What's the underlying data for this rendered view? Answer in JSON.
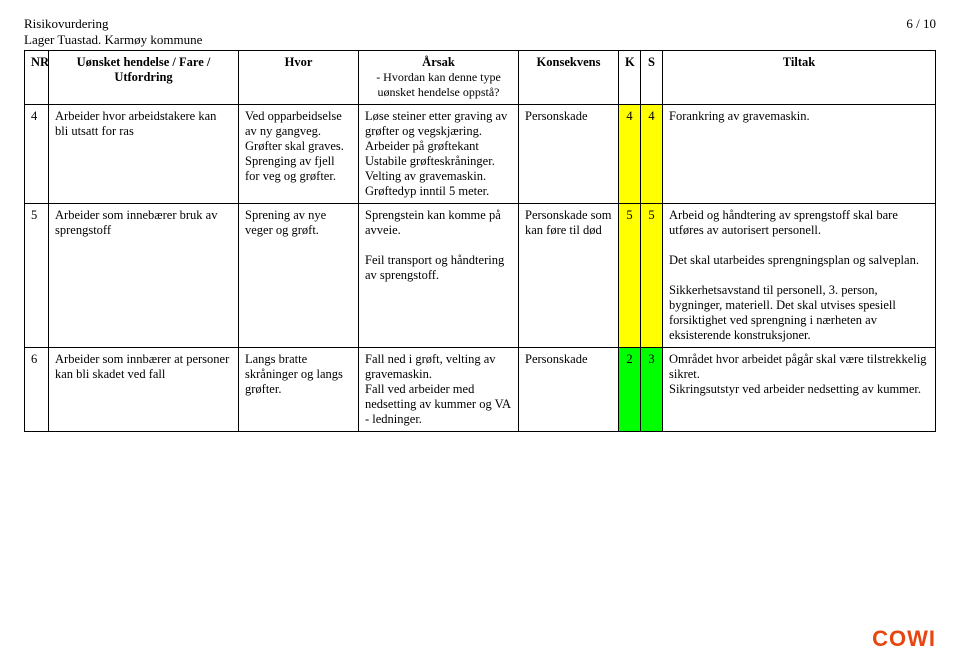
{
  "header": {
    "title": "Risikovurdering",
    "subtitle": "Lager Tuastad. Karmøy kommune",
    "page": "6 / 10"
  },
  "columns": {
    "nr": "NR",
    "event": "Uønsket hendelse / Fare / Utfordring",
    "hvor": "Hvor",
    "arsak": "Årsak",
    "arsak_sub": "- Hvordan kan denne type uønsket hendelse oppstå?",
    "kons": "Konsekvens",
    "k": "K",
    "s": "S",
    "tiltak": "Tiltak"
  },
  "rows": [
    {
      "nr": "4",
      "event": "Arbeider hvor arbeidstakere kan bli utsatt for ras",
      "hvor": "Ved opparbeidselse av ny gangveg. Grøfter skal graves. Sprenging av fjell for veg og grøfter.",
      "arsak": "Løse steiner etter graving av grøfter og vegskjæring. Arbeider på grøftekant Ustabile grøfteskråninger. Velting av gravemaskin. Grøftedyp inntil 5 meter.",
      "kons": "Personskade",
      "k": "4",
      "s": "4",
      "k_color": "#ffff00",
      "s_color": "#ffff00",
      "tiltak": "Forankring av gravemaskin."
    },
    {
      "nr": "5",
      "event": "Arbeider som innebærer bruk av sprengstoff",
      "hvor": "Sprening av nye veger og grøft.",
      "arsak": "Sprengstein kan komme på avveie.\n\nFeil transport og håndtering av sprengstoff.",
      "kons": "Personskade som kan føre til død",
      "k": "5",
      "s": "5",
      "k_color": "#ffff00",
      "s_color": "#ffff00",
      "tiltak": "Arbeid og håndtering av sprengstoff skal bare utføres av autorisert personell.\n\nDet skal utarbeides sprengningsplan og salveplan.\n\nSikkerhetsavstand til personell, 3. person, bygninger, materiell. Det skal utvises spesiell forsiktighet ved sprengning i nærheten av eksisterende konstruksjoner."
    },
    {
      "nr": "6",
      "event": "Arbeider som innbærer at personer kan bli skadet ved fall",
      "hvor": "Langs bratte skråninger og langs grøfter.",
      "arsak": "Fall ned i grøft, velting av gravemaskin.\nFall ved arbeider med nedsetting av kummer og VA - ledninger.",
      "kons": "Personskade",
      "k": "2",
      "s": "3",
      "k_color": "#00ff00",
      "s_color": "#00ff00",
      "tiltak": "Området hvor arbeidet pågår skal være tilstrekkelig sikret.\nSikringsutstyr ved arbeider nedsetting av kummer."
    }
  ],
  "logo": "COWI"
}
